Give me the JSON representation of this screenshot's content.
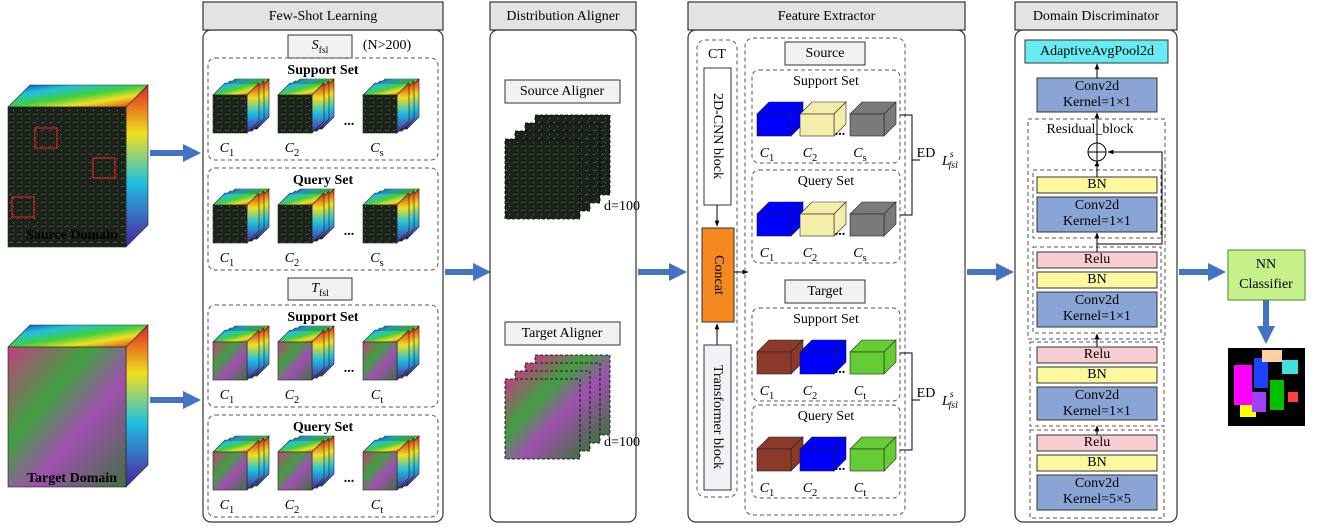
{
  "source_domain": "Source Domain",
  "target_domain": "Target Domain",
  "ellipsis": "...",
  "few_shot": {
    "title": "Few-Shot Learning",
    "source_set": {
      "symbol": "S",
      "sub": "fsl",
      "note": "(N>200)"
    },
    "target_set": {
      "symbol": "T",
      "sub": "fsl"
    },
    "groups": [
      {
        "title": "Support Set",
        "labels": [
          [
            "C",
            "1"
          ],
          [
            "C",
            "2"
          ],
          [
            "C",
            "s"
          ]
        ]
      },
      {
        "title": "Query Set",
        "labels": [
          [
            "C",
            "1"
          ],
          [
            "C",
            "2"
          ],
          [
            "C",
            "s"
          ]
        ]
      },
      {
        "title": "Support Set",
        "labels": [
          [
            "C",
            "1"
          ],
          [
            "C",
            "2"
          ],
          [
            "C",
            "t"
          ]
        ]
      },
      {
        "title": "Query Set",
        "labels": [
          [
            "C",
            "1"
          ],
          [
            "C",
            "2"
          ],
          [
            "C",
            "t"
          ]
        ]
      }
    ]
  },
  "aligner": {
    "title": "Distribution Aligner",
    "source": "Source Aligner",
    "target": "Target Aligner",
    "depth": "d=100"
  },
  "feature": {
    "title": "Feature Extractor",
    "ct": "CT",
    "cnn": "2D-CNN block",
    "concat": "Concat",
    "transformer": "Transformer block",
    "source": "Source",
    "target": "Target",
    "groups": [
      {
        "title": "Support Set",
        "labels": [
          [
            "C",
            "1"
          ],
          [
            "C",
            "2"
          ],
          [
            "C",
            "s"
          ]
        ]
      },
      {
        "title": "Query Set",
        "labels": [
          [
            "C",
            "1"
          ],
          [
            "C",
            "2"
          ],
          [
            "C",
            "s"
          ]
        ]
      },
      {
        "title": "Support Set",
        "labels": [
          [
            "C",
            "1"
          ],
          [
            "C",
            "2"
          ],
          [
            "C",
            "t"
          ]
        ]
      },
      {
        "title": "Query Set",
        "labels": [
          [
            "C",
            "1"
          ],
          [
            "C",
            "2"
          ],
          [
            "C",
            "t"
          ]
        ]
      }
    ],
    "loss": {
      "ed": "ED",
      "symbol": "L",
      "sup": "s",
      "sub": "fsl"
    }
  },
  "discriminator": {
    "title": "Domain Discriminator",
    "pool": "AdaptiveAvgPool2d",
    "residual": "Residual_block",
    "layers": [
      [
        "Conv2d",
        "Kernel=1×1"
      ],
      [
        "BN"
      ],
      [
        "Conv2d",
        "Kernel=1×1"
      ],
      [
        "Relu"
      ],
      [
        "BN"
      ],
      [
        "Conv2d",
        "Kernel=1×1"
      ],
      [
        "Relu"
      ],
      [
        "BN"
      ],
      [
        "Conv2d",
        "Kernel=1×1"
      ],
      [
        "Relu"
      ],
      [
        "BN"
      ],
      [
        "Conv2d",
        "Kernel=5×5"
      ]
    ]
  },
  "classifier": [
    "NN",
    "Classifier"
  ]
}
